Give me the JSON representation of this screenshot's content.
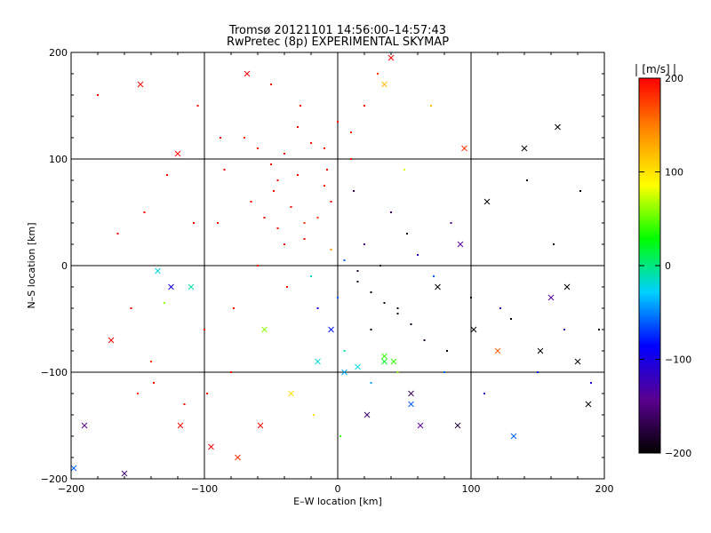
{
  "chart_data": [
    {
      "type": "scatter",
      "title": "Tromsø 20121101 14:56:00–14:57:43",
      "subtitle": "RwPretec (8p) EXPERIMENTAL SKYMAP",
      "xlabel": "E–W location [km]",
      "ylabel": "N–S location [km]",
      "xlim": [
        -200,
        200
      ],
      "ylim": [
        -200,
        200
      ],
      "xticks": [
        -200,
        -100,
        0,
        100,
        200
      ],
      "yticks": [
        -200,
        -100,
        0,
        100,
        200
      ],
      "grid": true,
      "marker_types": [
        "dot",
        "x"
      ],
      "color_scale": {
        "label": "[m/s]",
        "min": -200,
        "max": 200,
        "ticks": [
          200,
          100,
          0,
          -100,
          -200
        ],
        "colors": [
          "#000000",
          "#5a0090",
          "#0000ff",
          "#00d0ff",
          "#00ff00",
          "#ffff00",
          "#ff8c00",
          "#ff0000"
        ]
      },
      "points": [
        [
          -198,
          -190,
          -60,
          "x"
        ],
        [
          -190,
          -150,
          -150,
          "x"
        ],
        [
          -160,
          -195,
          -160,
          "x"
        ],
        [
          -150,
          -120,
          180,
          "dot"
        ],
        [
          -145,
          50,
          200,
          "dot"
        ],
        [
          -140,
          -90,
          180,
          "dot"
        ],
        [
          -135,
          -5,
          -20,
          "x"
        ],
        [
          -130,
          -35,
          60,
          "dot"
        ],
        [
          -125,
          -20,
          -100,
          "x"
        ],
        [
          -120,
          105,
          200,
          "x"
        ],
        [
          -115,
          -130,
          200,
          "dot"
        ],
        [
          -110,
          -20,
          -10,
          "x"
        ],
        [
          -105,
          150,
          200,
          "dot"
        ],
        [
          -100,
          -60,
          200,
          "dot"
        ],
        [
          -95,
          -170,
          200,
          "x"
        ],
        [
          -90,
          40,
          200,
          "dot"
        ],
        [
          -85,
          90,
          200,
          "dot"
        ],
        [
          -80,
          -100,
          200,
          "dot"
        ],
        [
          -75,
          -180,
          180,
          "x"
        ],
        [
          -70,
          120,
          200,
          "dot"
        ],
        [
          -65,
          60,
          200,
          "dot"
        ],
        [
          -60,
          0,
          200,
          "dot"
        ],
        [
          -55,
          -60,
          60,
          "x"
        ],
        [
          -50,
          170,
          200,
          "dot"
        ],
        [
          -45,
          80,
          200,
          "dot"
        ],
        [
          -40,
          20,
          200,
          "dot"
        ],
        [
          -35,
          -120,
          100,
          "x"
        ],
        [
          -30,
          130,
          200,
          "dot"
        ],
        [
          -25,
          40,
          180,
          "dot"
        ],
        [
          -20,
          -10,
          -20,
          "dot"
        ],
        [
          -15,
          -90,
          -20,
          "x"
        ],
        [
          -10,
          110,
          200,
          "dot"
        ],
        [
          -5,
          60,
          200,
          "dot"
        ],
        [
          0,
          -30,
          -60,
          "dot"
        ],
        [
          5,
          -100,
          -40,
          "x"
        ],
        [
          10,
          125,
          200,
          "dot"
        ],
        [
          15,
          -15,
          -180,
          "dot"
        ],
        [
          20,
          20,
          -140,
          "dot"
        ],
        [
          25,
          -60,
          -200,
          "dot"
        ],
        [
          30,
          180,
          160,
          "dot"
        ],
        [
          35,
          -90,
          20,
          "x"
        ],
        [
          40,
          50,
          -160,
          "dot"
        ],
        [
          45,
          -40,
          -190,
          "dot"
        ],
        [
          50,
          90,
          80,
          "dot"
        ],
        [
          55,
          -120,
          -160,
          "x"
        ],
        [
          60,
          10,
          -120,
          "dot"
        ],
        [
          65,
          -70,
          -180,
          "dot"
        ],
        [
          70,
          150,
          120,
          "dot"
        ],
        [
          75,
          -20,
          -200,
          "x"
        ],
        [
          80,
          -100,
          -60,
          "dot"
        ],
        [
          85,
          40,
          -140,
          "dot"
        ],
        [
          90,
          -150,
          -180,
          "x"
        ],
        [
          95,
          110,
          180,
          "x"
        ],
        [
          100,
          -30,
          -190,
          "dot"
        ],
        [
          110,
          -120,
          -120,
          "dot"
        ],
        [
          120,
          -80,
          160,
          "x"
        ],
        [
          130,
          -50,
          -200,
          "dot"
        ],
        [
          140,
          110,
          -200,
          "x"
        ],
        [
          150,
          -100,
          -80,
          "dot"
        ],
        [
          160,
          -30,
          -140,
          "x"
        ],
        [
          165,
          130,
          -200,
          "x"
        ],
        [
          170,
          -60,
          -120,
          "dot"
        ],
        [
          180,
          -90,
          -200,
          "x"
        ],
        [
          190,
          -110,
          -100,
          "dot"
        ],
        [
          -180,
          160,
          200,
          "dot"
        ],
        [
          -170,
          -70,
          200,
          "x"
        ],
        [
          -165,
          30,
          200,
          "dot"
        ],
        [
          -155,
          -40,
          200,
          "dot"
        ],
        [
          -148,
          170,
          200,
          "x"
        ],
        [
          -138,
          -110,
          200,
          "dot"
        ],
        [
          -128,
          85,
          200,
          "dot"
        ],
        [
          -118,
          -150,
          200,
          "x"
        ],
        [
          -108,
          40,
          200,
          "dot"
        ],
        [
          -98,
          -120,
          200,
          "dot"
        ],
        [
          -88,
          120,
          200,
          "dot"
        ],
        [
          -78,
          -40,
          200,
          "dot"
        ],
        [
          -68,
          180,
          200,
          "x"
        ],
        [
          -58,
          -150,
          200,
          "x"
        ],
        [
          -48,
          70,
          200,
          "dot"
        ],
        [
          -38,
          -20,
          200,
          "dot"
        ],
        [
          -28,
          150,
          200,
          "dot"
        ],
        [
          -18,
          -140,
          100,
          "dot"
        ],
        [
          -8,
          90,
          200,
          "dot"
        ],
        [
          2,
          -160,
          40,
          "dot"
        ],
        [
          12,
          70,
          -160,
          "dot"
        ],
        [
          22,
          -140,
          -160,
          "x"
        ],
        [
          32,
          0,
          -200,
          "dot"
        ],
        [
          42,
          -90,
          40,
          "x"
        ],
        [
          52,
          30,
          -200,
          "dot"
        ],
        [
          62,
          -150,
          -140,
          "x"
        ],
        [
          72,
          -10,
          -60,
          "dot"
        ],
        [
          82,
          -80,
          -200,
          "dot"
        ],
        [
          92,
          20,
          -140,
          "x"
        ],
        [
          102,
          -60,
          -200,
          "x"
        ],
        [
          112,
          60,
          -200,
          "x"
        ],
        [
          122,
          -40,
          -120,
          "dot"
        ],
        [
          132,
          -160,
          -60,
          "x"
        ],
        [
          142,
          80,
          -200,
          "dot"
        ],
        [
          152,
          -80,
          -200,
          "x"
        ],
        [
          162,
          20,
          -200,
          "dot"
        ],
        [
          172,
          -20,
          -200,
          "x"
        ],
        [
          182,
          70,
          -200,
          "dot"
        ],
        [
          188,
          -130,
          -200,
          "x"
        ],
        [
          196,
          -60,
          -200,
          "dot"
        ],
        [
          -60,
          110,
          200,
          "dot"
        ],
        [
          -50,
          95,
          200,
          "dot"
        ],
        [
          -40,
          105,
          200,
          "dot"
        ],
        [
          -30,
          85,
          200,
          "dot"
        ],
        [
          -20,
          115,
          200,
          "dot"
        ],
        [
          -10,
          75,
          200,
          "dot"
        ],
        [
          0,
          135,
          200,
          "dot"
        ],
        [
          10,
          100,
          200,
          "dot"
        ],
        [
          20,
          150,
          200,
          "dot"
        ],
        [
          30,
          180,
          180,
          "dot"
        ],
        [
          40,
          195,
          200,
          "x"
        ],
        [
          35,
          170,
          120,
          "x"
        ],
        [
          -55,
          45,
          200,
          "dot"
        ],
        [
          -45,
          35,
          200,
          "dot"
        ],
        [
          -35,
          55,
          200,
          "dot"
        ],
        [
          -25,
          25,
          200,
          "dot"
        ],
        [
          -15,
          45,
          180,
          "dot"
        ],
        [
          -5,
          15,
          140,
          "dot"
        ],
        [
          5,
          5,
          -60,
          "dot"
        ],
        [
          15,
          -5,
          -180,
          "dot"
        ],
        [
          25,
          -25,
          -200,
          "dot"
        ],
        [
          35,
          -35,
          -190,
          "dot"
        ],
        [
          45,
          -45,
          -200,
          "dot"
        ],
        [
          55,
          -55,
          -180,
          "dot"
        ],
        [
          -15,
          -40,
          -100,
          "dot"
        ],
        [
          -5,
          -60,
          -80,
          "x"
        ],
        [
          5,
          -80,
          0,
          "dot"
        ],
        [
          15,
          -95,
          -20,
          "x"
        ],
        [
          25,
          -110,
          -40,
          "dot"
        ],
        [
          35,
          -85,
          40,
          "x"
        ],
        [
          45,
          -100,
          60,
          "dot"
        ],
        [
          55,
          -130,
          -60,
          "x"
        ]
      ]
    }
  ]
}
